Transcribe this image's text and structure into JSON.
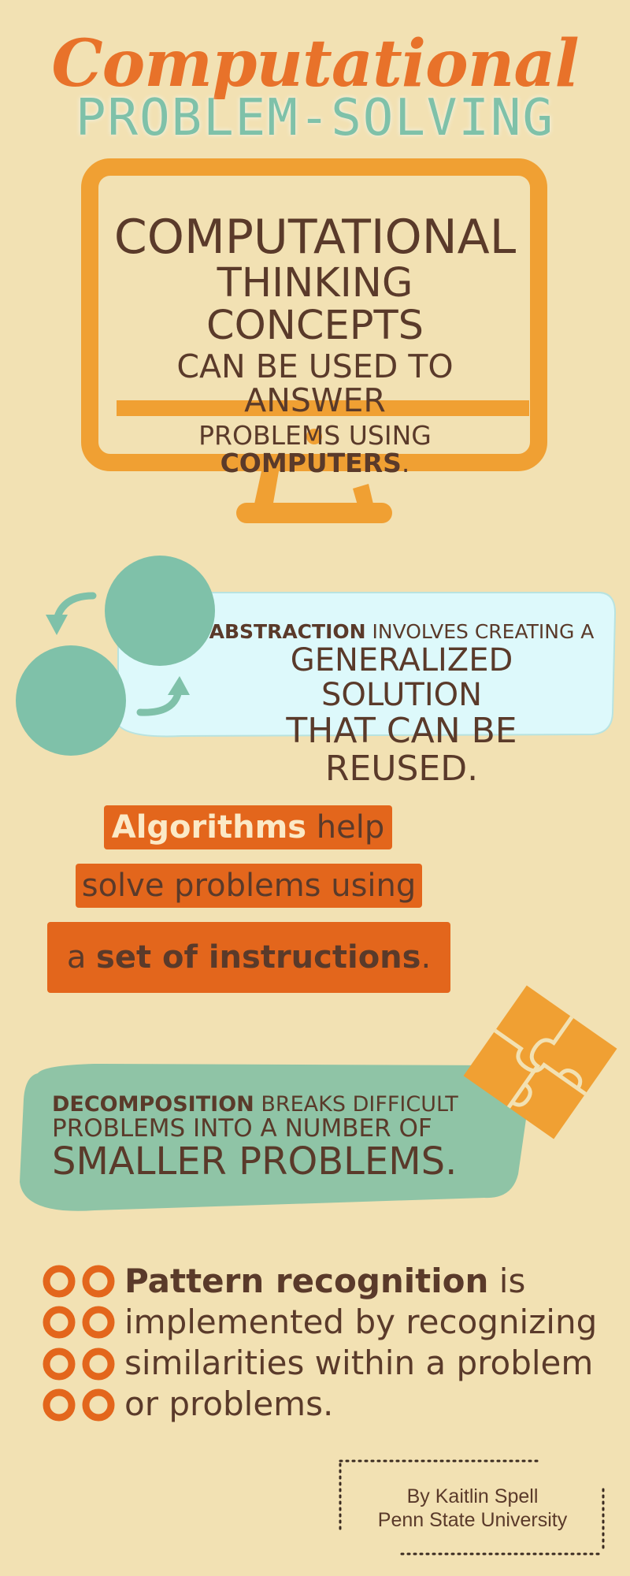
{
  "title": {
    "script": "Computational",
    "sub": "PROBLEM-SOLVING"
  },
  "monitor": {
    "line1": "COMPUTATIONAL",
    "line2": "THINKING CONCEPTS",
    "line3": "CAN BE USED TO ANSWER",
    "line4_pre": "PROBLEMS USING ",
    "line4_bold": "COMPUTERS",
    "line4_post": "."
  },
  "abstraction": {
    "bold": "ABSTRACTION",
    "rest": " INVOLVES CREATING A",
    "line2": "GENERALIZED SOLUTION",
    "line3": "THAT CAN BE REUSED."
  },
  "algorithms": {
    "line1_bold": "Algorithms",
    "line1_rest": " help",
    "line2": "solve problems using",
    "line3_pre": "a ",
    "line3_bold": "set of instructions",
    "line3_post": "."
  },
  "decomposition": {
    "bold": "DECOMPOSITION",
    "rest": " BREAKS DIFFICULT",
    "line2": "PROBLEMS INTO A NUMBER OF",
    "line3": "SMALLER PROBLEMS."
  },
  "pattern": {
    "bold": "Pattern recognition",
    "rest1": " is",
    "line2": "implemented by recognizing",
    "line3": "similarities within a problem",
    "line4": "or problems."
  },
  "credit": {
    "author": "By Kaitlin Spell",
    "org": "Penn State University"
  },
  "colors": {
    "background": "#f2e1b3",
    "orange": "#f0a033",
    "dark_orange": "#e3661c",
    "teal": "#7fc1a9",
    "light_cyan": "#ddf9fb",
    "brown": "#5a3a2a"
  }
}
